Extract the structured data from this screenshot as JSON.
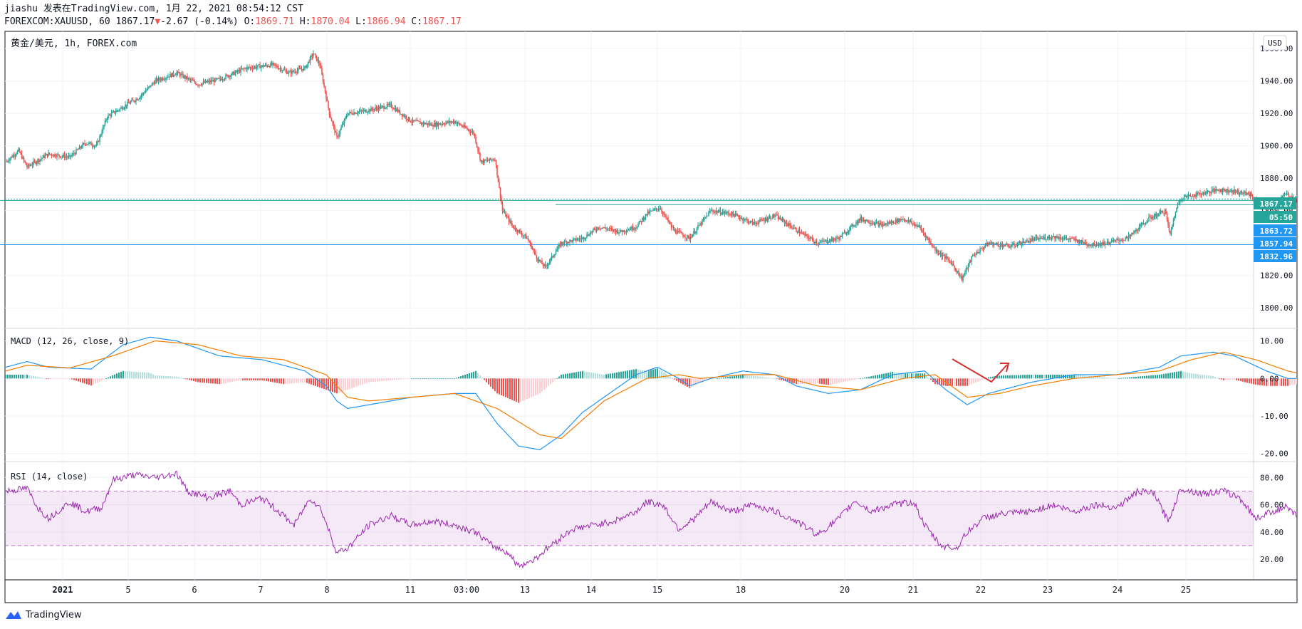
{
  "header": {
    "publisher_line": "jiashu 发表在TradingView.com, 1月 22, 2021 08:54:12 CST",
    "symbol_line": {
      "symbol": "FOREXCOM:XAUUSD, 60",
      "last": "1867.17",
      "change": "-2.67 (-0.14%)",
      "o_label": "O:",
      "o_value": "1869.71",
      "h_label": "H:",
      "h_value": "1870.04",
      "l_label": "L:",
      "l_value": "1866.94",
      "c_label": "C:",
      "c_value": "1867.17"
    }
  },
  "chart_data": [
    {
      "type": "candlestick",
      "title": "黄金/美元, 1h, FOREX.com",
      "currency_button": "USD",
      "ylim": [
        1790,
        1968
      ],
      "y_ticks": [
        1800,
        1820,
        1840,
        1860,
        1880,
        1900,
        1920,
        1940,
        1960
      ],
      "price_labels": [
        {
          "value": "1867.17",
          "color": "#26a69a"
        },
        {
          "value": "05:50",
          "color": "#26a69a"
        },
        {
          "value": "1863.72",
          "color": "#2196f3"
        },
        {
          "value": "1857.94",
          "color": "#2196f3"
        },
        {
          "value": "1832.96",
          "color": "#2196f3"
        }
      ],
      "close_anchors": [
        [
          0,
          1890
        ],
        [
          12,
          1897
        ],
        [
          20,
          1887
        ],
        [
          40,
          1895
        ],
        [
          60,
          1893
        ],
        [
          75,
          1902
        ],
        [
          85,
          1900
        ],
        [
          95,
          1918
        ],
        [
          112,
          1925
        ],
        [
          125,
          1930
        ],
        [
          140,
          1940
        ],
        [
          160,
          1945
        ],
        [
          180,
          1938
        ],
        [
          200,
          1941
        ],
        [
          225,
          1948
        ],
        [
          250,
          1950
        ],
        [
          265,
          1945
        ],
        [
          280,
          1948
        ],
        [
          288,
          1957
        ],
        [
          294,
          1950
        ],
        [
          303,
          1920
        ],
        [
          310,
          1905
        ],
        [
          320,
          1920
        ],
        [
          340,
          1922
        ],
        [
          360,
          1925
        ],
        [
          380,
          1915
        ],
        [
          400,
          1913
        ],
        [
          420,
          1915
        ],
        [
          438,
          1908
        ],
        [
          445,
          1890
        ],
        [
          458,
          1892
        ],
        [
          465,
          1860
        ],
        [
          475,
          1850
        ],
        [
          488,
          1843
        ],
        [
          498,
          1830
        ],
        [
          505,
          1825
        ],
        [
          520,
          1840
        ],
        [
          540,
          1843
        ],
        [
          555,
          1850
        ],
        [
          575,
          1847
        ],
        [
          590,
          1850
        ],
        [
          600,
          1858
        ],
        [
          612,
          1862
        ],
        [
          625,
          1848
        ],
        [
          640,
          1843
        ],
        [
          660,
          1860
        ],
        [
          680,
          1858
        ],
        [
          700,
          1852
        ],
        [
          720,
          1857
        ],
        [
          740,
          1848
        ],
        [
          760,
          1840
        ],
        [
          780,
          1843
        ],
        [
          800,
          1855
        ],
        [
          820,
          1851
        ],
        [
          840,
          1855
        ],
        [
          855,
          1850
        ],
        [
          870,
          1836
        ],
        [
          885,
          1828
        ],
        [
          895,
          1818
        ],
        [
          905,
          1832
        ],
        [
          920,
          1840
        ],
        [
          940,
          1838
        ],
        [
          960,
          1842
        ],
        [
          980,
          1844
        ],
        [
          1000,
          1842
        ],
        [
          1015,
          1839
        ],
        [
          1030,
          1840
        ],
        [
          1050,
          1843
        ],
        [
          1070,
          1855
        ],
        [
          1085,
          1860
        ],
        [
          1090,
          1845
        ],
        [
          1095,
          1860
        ],
        [
          1100,
          1868
        ],
        [
          1115,
          1870
        ],
        [
          1135,
          1873
        ],
        [
          1150,
          1872
        ],
        [
          1165,
          1870
        ],
        [
          1175,
          1862
        ],
        [
          1185,
          1864
        ],
        [
          1198,
          1870
        ],
        [
          1208,
          1867
        ]
      ],
      "horizontal_levels": [
        {
          "price": 1867.17,
          "style": "dotted",
          "color": "#26a69a"
        },
        {
          "price": 1866.3,
          "from_day": "12",
          "color": "#26a69a"
        },
        {
          "price": 1863.72,
          "from_day": "14",
          "color": "#26a69a"
        },
        {
          "price": 1839.0,
          "from_day": "19",
          "color": "#2196f3"
        }
      ],
      "x_labels": [
        "2021",
        "5",
        "6",
        "7",
        "8",
        "11",
        "03:00",
        "13",
        "14",
        "15",
        "18",
        "20",
        "21",
        "22",
        "23",
        "24",
        "25"
      ]
    },
    {
      "type": "line+histogram",
      "title": "MACD (12, 26, close, 9)",
      "ylim": [
        -21,
        12
      ],
      "y_ticks": [
        -20,
        -10,
        0,
        10
      ],
      "series": [
        {
          "name": "MACD",
          "color": "#2196f3",
          "anchors": [
            [
              0,
              3
            ],
            [
              20,
              4.5
            ],
            [
              40,
              3
            ],
            [
              80,
              2.5
            ],
            [
              110,
              9
            ],
            [
              135,
              11
            ],
            [
              160,
              10
            ],
            [
              200,
              6
            ],
            [
              240,
              5
            ],
            [
              280,
              2
            ],
            [
              300,
              -2
            ],
            [
              310,
              -6
            ],
            [
              320,
              -8
            ],
            [
              340,
              -7
            ],
            [
              380,
              -5
            ],
            [
              420,
              -4
            ],
            [
              440,
              -4
            ],
            [
              460,
              -12
            ],
            [
              480,
              -18
            ],
            [
              500,
              -19
            ],
            [
              520,
              -15
            ],
            [
              540,
              -9
            ],
            [
              560,
              -5
            ],
            [
              590,
              1
            ],
            [
              610,
              3
            ],
            [
              630,
              0
            ],
            [
              640,
              -2
            ],
            [
              660,
              0
            ],
            [
              690,
              2
            ],
            [
              720,
              1
            ],
            [
              740,
              -2
            ],
            [
              770,
              -4
            ],
            [
              800,
              -3
            ],
            [
              830,
              1
            ],
            [
              860,
              2
            ],
            [
              880,
              -3
            ],
            [
              900,
              -7
            ],
            [
              920,
              -4
            ],
            [
              960,
              -1
            ],
            [
              1000,
              1
            ],
            [
              1040,
              1
            ],
            [
              1080,
              3
            ],
            [
              1100,
              6
            ],
            [
              1130,
              7
            ],
            [
              1150,
              6
            ],
            [
              1180,
              2
            ],
            [
              1200,
              0
            ],
            [
              1208,
              0
            ]
          ]
        },
        {
          "name": "Signal",
          "color": "#f57c00",
          "anchors": [
            [
              0,
              2
            ],
            [
              20,
              3.5
            ],
            [
              60,
              2.8
            ],
            [
              100,
              6
            ],
            [
              140,
              10
            ],
            [
              180,
              9
            ],
            [
              220,
              6
            ],
            [
              260,
              5
            ],
            [
              300,
              1
            ],
            [
              320,
              -5
            ],
            [
              340,
              -6
            ],
            [
              380,
              -5
            ],
            [
              420,
              -4
            ],
            [
              460,
              -8
            ],
            [
              500,
              -15
            ],
            [
              520,
              -16
            ],
            [
              540,
              -11
            ],
            [
              560,
              -6
            ],
            [
              600,
              0
            ],
            [
              630,
              1
            ],
            [
              650,
              0
            ],
            [
              690,
              1
            ],
            [
              720,
              1
            ],
            [
              760,
              -2
            ],
            [
              800,
              -3
            ],
            [
              840,
              0
            ],
            [
              870,
              1
            ],
            [
              900,
              -5
            ],
            [
              930,
              -4
            ],
            [
              960,
              -2
            ],
            [
              1000,
              0
            ],
            [
              1040,
              1
            ],
            [
              1080,
              2
            ],
            [
              1110,
              5
            ],
            [
              1140,
              7
            ],
            [
              1170,
              5
            ],
            [
              1200,
              2
            ],
            [
              1208,
              1.5
            ]
          ]
        }
      ],
      "annotation": {
        "type": "arrow",
        "color": "#d32f2f"
      }
    },
    {
      "type": "line",
      "title": "RSI (14, close)",
      "ylim": [
        8,
        88
      ],
      "y_ticks": [
        20,
        40,
        60,
        80
      ],
      "band": [
        30,
        70
      ],
      "series": [
        {
          "name": "RSI",
          "color": "#9c27b0",
          "anchors": [
            [
              0,
              70
            ],
            [
              20,
              72
            ],
            [
              30,
              58
            ],
            [
              40,
              50
            ],
            [
              60,
              62
            ],
            [
              75,
              55
            ],
            [
              90,
              58
            ],
            [
              100,
              78
            ],
            [
              120,
              82
            ],
            [
              140,
              80
            ],
            [
              160,
              83
            ],
            [
              170,
              70
            ],
            [
              190,
              65
            ],
            [
              210,
              70
            ],
            [
              220,
              60
            ],
            [
              240,
              65
            ],
            [
              260,
              52
            ],
            [
              270,
              45
            ],
            [
              285,
              65
            ],
            [
              295,
              57
            ],
            [
              310,
              25
            ],
            [
              320,
              28
            ],
            [
              340,
              45
            ],
            [
              360,
              52
            ],
            [
              380,
              45
            ],
            [
              400,
              48
            ],
            [
              420,
              45
            ],
            [
              440,
              40
            ],
            [
              455,
              30
            ],
            [
              470,
              25
            ],
            [
              480,
              15
            ],
            [
              495,
              20
            ],
            [
              510,
              30
            ],
            [
              530,
              42
            ],
            [
              550,
              45
            ],
            [
              570,
              48
            ],
            [
              590,
              55
            ],
            [
              600,
              62
            ],
            [
              615,
              60
            ],
            [
              630,
              42
            ],
            [
              645,
              50
            ],
            [
              660,
              62
            ],
            [
              680,
              55
            ],
            [
              700,
              60
            ],
            [
              720,
              55
            ],
            [
              740,
              48
            ],
            [
              760,
              38
            ],
            [
              780,
              50
            ],
            [
              795,
              63
            ],
            [
              810,
              55
            ],
            [
              830,
              60
            ],
            [
              850,
              62
            ],
            [
              860,
              45
            ],
            [
              875,
              30
            ],
            [
              890,
              28
            ],
            [
              900,
              40
            ],
            [
              915,
              50
            ],
            [
              930,
              53
            ],
            [
              960,
              55
            ],
            [
              980,
              60
            ],
            [
              1000,
              55
            ],
            [
              1020,
              60
            ],
            [
              1040,
              58
            ],
            [
              1060,
              70
            ],
            [
              1075,
              68
            ],
            [
              1088,
              48
            ],
            [
              1100,
              72
            ],
            [
              1120,
              68
            ],
            [
              1140,
              70
            ],
            [
              1155,
              65
            ],
            [
              1170,
              50
            ],
            [
              1185,
              55
            ],
            [
              1198,
              58
            ],
            [
              1208,
              52
            ]
          ]
        }
      ]
    }
  ],
  "footer": {
    "brand": "TradingView"
  }
}
